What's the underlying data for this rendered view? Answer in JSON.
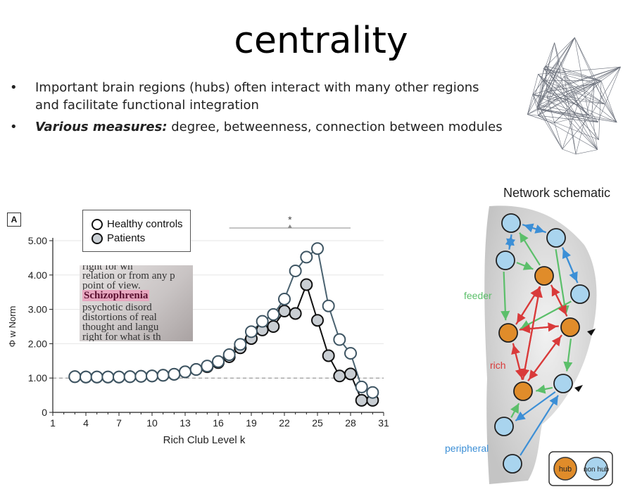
{
  "slide": {
    "title": "centrality",
    "bullets": [
      {
        "marker": "•",
        "text": "Important brain regions (hubs) often interact with many other regions and facilitate functional integration"
      },
      {
        "marker": "•",
        "emphasis": "Various measures:",
        "text": " degree, betweenness, connection between modules"
      }
    ]
  },
  "figure": {
    "panel_label": "A",
    "legend": [
      "Healthy controls",
      "Patients"
    ],
    "significance_marker": "*",
    "photo_lines": [
      "right for wh",
      "relation or from any p",
      "point of view.",
      "Schizophrenia",
      "psychotic disord",
      "distortions of real",
      "thought and langu",
      "right for what is th"
    ]
  },
  "chart_data": {
    "type": "line",
    "x": [
      3,
      4,
      5,
      6,
      7,
      8,
      9,
      10,
      11,
      12,
      13,
      14,
      15,
      16,
      17,
      18,
      19,
      20,
      21,
      22,
      23,
      24,
      25,
      26,
      27,
      28,
      29,
      30
    ],
    "series": [
      {
        "name": "Healthy controls",
        "values": [
          1.04,
          1.03,
          1.03,
          1.03,
          1.03,
          1.04,
          1.05,
          1.06,
          1.08,
          1.11,
          1.18,
          1.25,
          1.35,
          1.48,
          1.68,
          1.98,
          2.35,
          2.65,
          2.85,
          3.3,
          4.12,
          4.52,
          4.77,
          3.1,
          2.12,
          1.72,
          0.74,
          0.58
        ]
      },
      {
        "name": "Patients",
        "values": [
          1.04,
          1.03,
          1.03,
          1.03,
          1.03,
          1.04,
          1.05,
          1.06,
          1.08,
          1.11,
          1.18,
          1.25,
          1.33,
          1.45,
          1.62,
          1.88,
          2.15,
          2.4,
          2.5,
          2.95,
          2.88,
          3.72,
          2.68,
          1.65,
          1.06,
          1.12,
          0.35,
          0.35
        ]
      }
    ],
    "xlabel": "Rich Club Level k",
    "ylabel": "Φ w Norm",
    "ylim": [
      0,
      5
    ],
    "xlim": [
      1,
      31
    ],
    "xticks": [
      1,
      4,
      7,
      10,
      13,
      16,
      19,
      22,
      25,
      28,
      31
    ],
    "yticks": [
      0,
      1.0,
      2.0,
      3.0,
      4.0,
      5.0
    ],
    "ytick_labels": [
      "0",
      "1.00",
      "2.00",
      "3.00",
      "4.00",
      "5.00"
    ],
    "reference_line": 1.0,
    "significance_range": [
      17,
      28
    ],
    "colors": {
      "controls_fill": "#ffffff",
      "patients_fill": "#c9ced3",
      "controls_line": "#4a6270",
      "patients_line": "#111111"
    }
  },
  "schematic": {
    "title": "Network schematic",
    "labels": {
      "feeder": "feeder",
      "rich": "rich",
      "peripheral": "peripheral",
      "hub": "hub",
      "nonhub": "non hub"
    },
    "colors": {
      "hub": "#e08c2a",
      "nonhub": "#a9d4ee",
      "feeder": "#5bbf6a",
      "rich": "#d93a3a",
      "peripheral": "#3c8fd6"
    }
  }
}
